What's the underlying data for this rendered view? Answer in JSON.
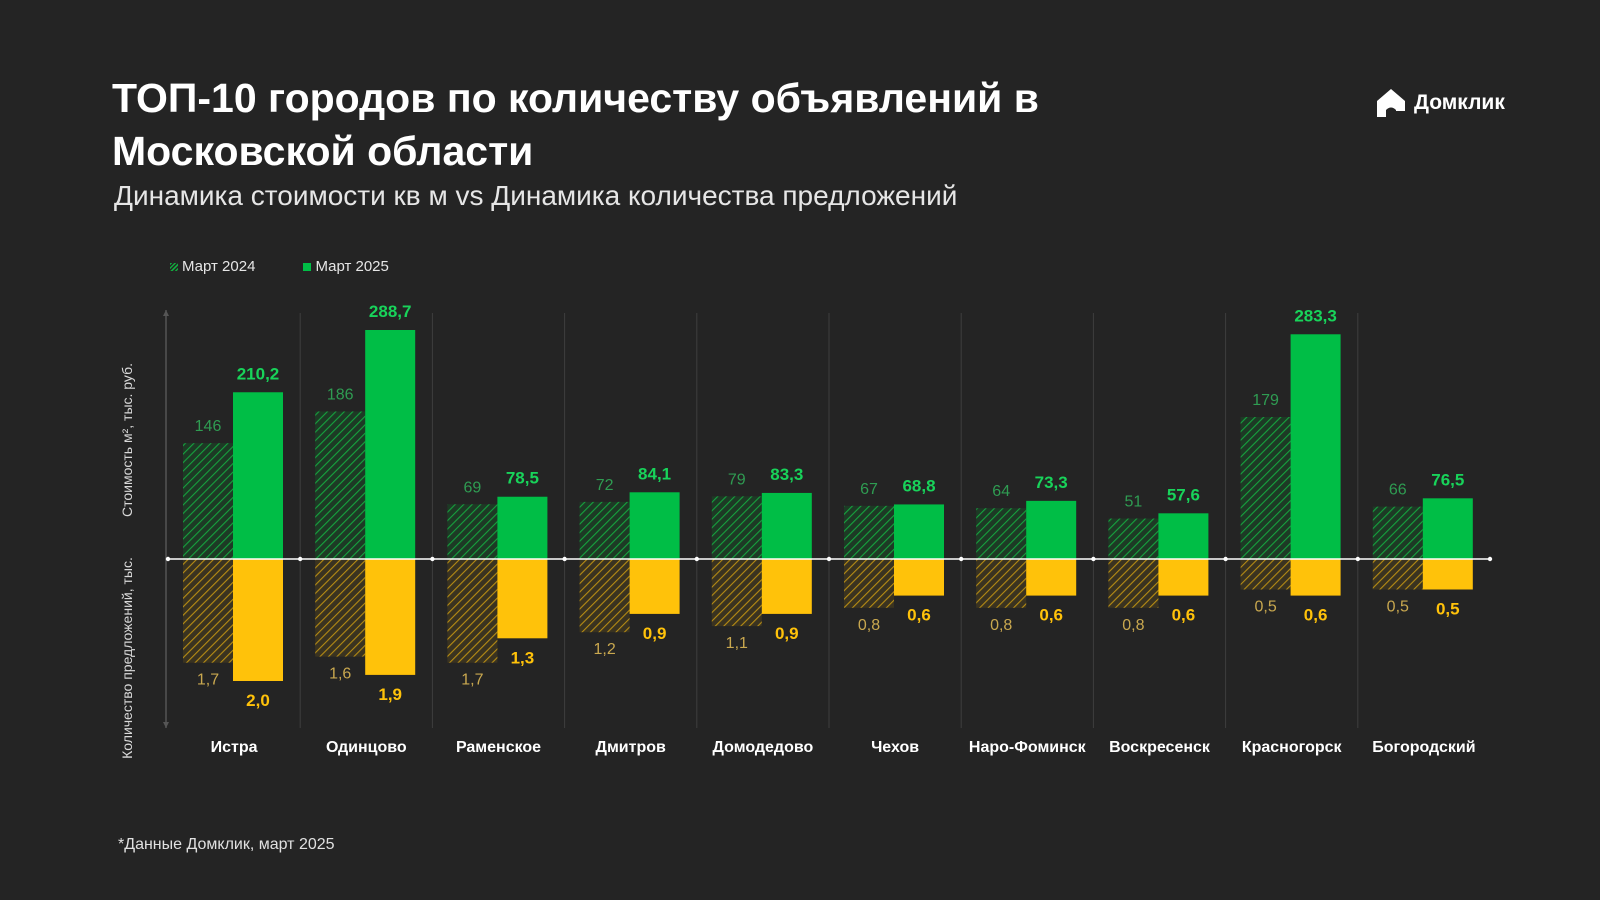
{
  "header": {
    "title": "ТОП-10 городов по количеству объявлений в Московской области",
    "subtitle": "Динамика стоимости кв м vs Динамика количества предложений"
  },
  "logo": {
    "text": "Домклик",
    "icon": "house-logo-icon"
  },
  "footnote": "*Данные Домклик, март 2025",
  "colors": {
    "price_2025": "#00be46",
    "price_2024": "#12a63d",
    "listings_2025": "#ffc20a",
    "listings_2024": "#b88d12",
    "label_2024_price": "#2f9c52",
    "label_2025_price": "#18d35a",
    "label_2024_listings": "#c9a84f",
    "label_2025_listings": "#ffc20a"
  },
  "chart_data": {
    "type": "bar",
    "legend": [
      "Март 2024",
      "Март 2025"
    ],
    "legend_position": "top-left",
    "ylabel_top": "Стоимость м², тыс. руб.",
    "ylabel_bottom": "Количество предложений, тыс.",
    "categories": [
      "Истра",
      "Одинцово",
      "Раменское",
      "Дмитров",
      "Домодедово",
      "Чехов",
      "Наро-Фоминск",
      "Воскресенск",
      "Красногорск",
      "Богородский"
    ],
    "series": [
      {
        "name": "Март 2024",
        "price_values": [
          146,
          186,
          69,
          72,
          79,
          67,
          64,
          51,
          179,
          66
        ],
        "price_labels": [
          "146",
          "186",
          "69",
          "72",
          "79",
          "67",
          "64",
          "51",
          "179",
          "66"
        ],
        "listing_values": [
          1.7,
          1.6,
          1.7,
          1.2,
          1.1,
          0.8,
          0.8,
          0.8,
          0.5,
          0.5
        ],
        "listing_labels": [
          "1,7",
          "1,6",
          "1,7",
          "1,2",
          "1,1",
          "0,8",
          "0,8",
          "0,8",
          "0,5",
          "0,5"
        ]
      },
      {
        "name": "Март 2025",
        "price_values": [
          210.2,
          288.7,
          78.5,
          84.1,
          83.3,
          68.8,
          73.3,
          57.6,
          283.3,
          76.5
        ],
        "price_labels": [
          "210,2",
          "288,7",
          "78,5",
          "84,1",
          "83,3",
          "68,8",
          "73,3",
          "57,6",
          "283,3",
          "76,5"
        ],
        "listing_values": [
          2.0,
          1.9,
          1.3,
          0.9,
          0.9,
          0.6,
          0.6,
          0.6,
          0.6,
          0.5
        ],
        "listing_labels": [
          "2,0",
          "1,9",
          "1,3",
          "0,9",
          "0,9",
          "0,6",
          "0,6",
          "0,6",
          "0,6",
          "0,5"
        ]
      }
    ],
    "price_range": [
      0,
      320
    ],
    "listings_range": [
      0,
      2.7
    ],
    "grid": false
  }
}
